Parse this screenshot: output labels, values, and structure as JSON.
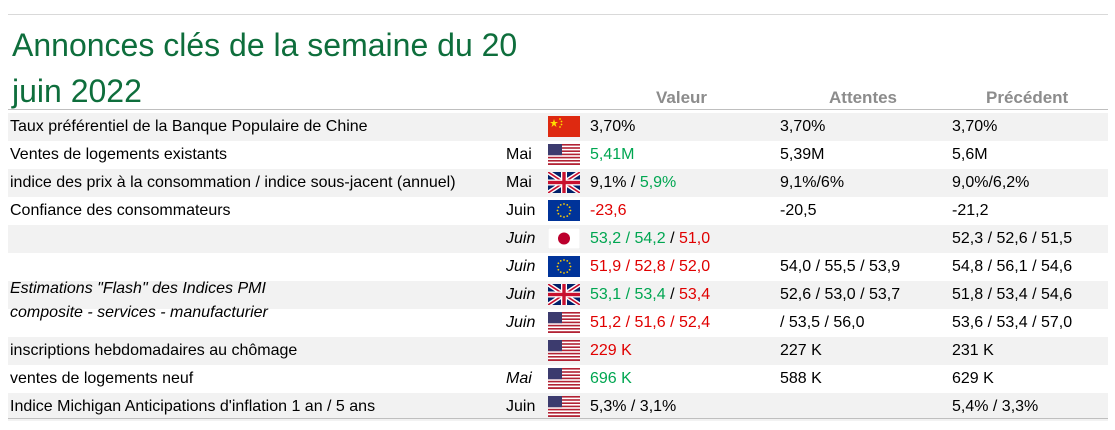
{
  "title": "Annonces clés de la semaine du 20 juin 2022",
  "headers": {
    "value": "Valeur",
    "expected": "Attentes",
    "previous": "Précédent"
  },
  "pmi_label": {
    "line1": "Estimations \"Flash\" des Indices PMI",
    "line2": "composite - services - manufacturier"
  },
  "rows": [
    {
      "label": "Taux préférentiel de la Banque Populaire de Chine",
      "period": "",
      "flag": "china-flag-icon",
      "value": [
        [
          "3,70%",
          "k"
        ]
      ],
      "expected": "3,70%",
      "previous": "3,70%"
    },
    {
      "label": "Ventes de logements existants",
      "period": "Mai",
      "flag": "usa-flag-icon",
      "value": [
        [
          "5,41M",
          "g"
        ]
      ],
      "expected": "5,39M",
      "previous": "5,6M"
    },
    {
      "label": "indice des prix à la consommation / indice sous-jacent (annuel)",
      "period": "Mai",
      "flag": "uk-flag-icon",
      "value": [
        [
          "9,1%",
          "k"
        ],
        [
          " / ",
          "k"
        ],
        [
          "5,9%",
          "g"
        ]
      ],
      "expected": "9,1%/6%",
      "previous": "9,0%/6,2%"
    },
    {
      "label": "Confiance des consommateurs",
      "period": "Juin",
      "flag": "eu-flag-icon",
      "value": [
        [
          "-23,6",
          "r"
        ]
      ],
      "expected": "-20,5",
      "previous": "-21,2"
    },
    {
      "label": "",
      "period": "Juin",
      "period_italic": true,
      "flag": "japan-flag-icon",
      "value": [
        [
          "53,2 / 54,2",
          "g"
        ],
        [
          " / ",
          "k"
        ],
        [
          "51,0",
          "r"
        ]
      ],
      "expected": "",
      "previous": "52,3 / 52,6 / 51,5"
    },
    {
      "label": "",
      "period": "Juin",
      "period_italic": true,
      "flag": "eu-flag-icon",
      "value": [
        [
          "51,9 / 52,8 / 52,0",
          "r"
        ]
      ],
      "expected": "54,0 / 55,5 / 53,9",
      "previous": "54,8 / 56,1 / 54,6"
    },
    {
      "label": "",
      "period": "Juin",
      "period_italic": true,
      "flag": "uk-flag-icon",
      "value": [
        [
          "53,1 / 53,4",
          "g"
        ],
        [
          " / ",
          "k"
        ],
        [
          "53,4",
          "r"
        ]
      ],
      "expected": "52,6 / 53,0 / 53,7",
      "previous": "51,8 / 53,4 / 54,6"
    },
    {
      "label": "",
      "period": "Juin",
      "period_italic": true,
      "flag": "usa-flag-icon",
      "value": [
        [
          "51,2 / 51,6 / 52,4",
          "r"
        ]
      ],
      "expected": " / 53,5 / 56,0",
      "previous": "53,6 / 53,4 / 57,0"
    },
    {
      "label": "inscriptions hebdomadaires au chômage",
      "period": "",
      "flag": "usa-flag-icon",
      "value": [
        [
          "229 K",
          "r"
        ]
      ],
      "expected": "227 K",
      "previous": "231 K"
    },
    {
      "label": "ventes de logements neuf",
      "period": "Mai",
      "period_italic": true,
      "flag": "usa-flag-icon",
      "value": [
        [
          "696 K",
          "g"
        ]
      ],
      "expected": "588 K",
      "previous": "629 K"
    },
    {
      "label": "Indice Michigan Anticipations d'inflation 1 an / 5 ans",
      "period": "Juin",
      "flag": "usa-flag-icon",
      "value": [
        [
          "5,3% / 3,1%",
          "k"
        ]
      ],
      "expected": "",
      "previous": "5,4% / 3,3%"
    }
  ],
  "colors": {
    "title": "#0e6e3c",
    "positive": "#00a651",
    "negative": "#e00000",
    "header": "#8c8c8c",
    "shade": "#f2f2f2"
  }
}
